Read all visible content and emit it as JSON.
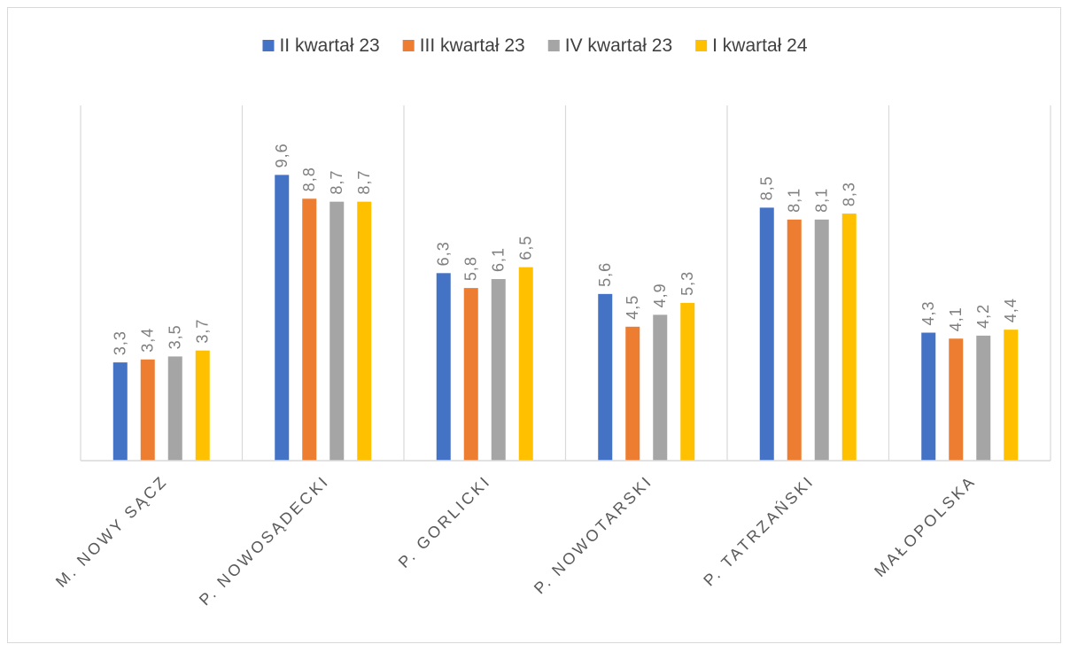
{
  "chart_data": {
    "type": "bar",
    "categories": [
      "M. NOWY SĄCZ",
      "P. NOWOSĄDECKI",
      "P. GORLICKI",
      "P. NOWOTARSKI",
      "P. TATRZAŃSKI",
      "MAŁOPOLSKA"
    ],
    "series": [
      {
        "name": "II kwartał 23",
        "color": "#4472c4",
        "values": [
          3.3,
          9.6,
          6.3,
          5.6,
          8.5,
          4.3
        ],
        "labels": [
          "3,3",
          "9,6",
          "6,3",
          "5,6",
          "8,5",
          "4,3"
        ]
      },
      {
        "name": "III kwartał 23",
        "color": "#ed7d31",
        "values": [
          3.4,
          8.8,
          5.8,
          4.5,
          8.1,
          4.1
        ],
        "labels": [
          "3,4",
          "8,8",
          "5,8",
          "4,5",
          "8,1",
          "4,1"
        ]
      },
      {
        "name": "IV kwartał 23",
        "color": "#a5a5a5",
        "values": [
          3.5,
          8.7,
          6.1,
          4.9,
          8.1,
          4.2
        ],
        "labels": [
          "3,5",
          "8,7",
          "6,1",
          "4,9",
          "8,1",
          "4,2"
        ]
      },
      {
        "name": "I kwartał 24",
        "color": "#ffc000",
        "values": [
          3.7,
          8.7,
          6.5,
          5.3,
          8.3,
          4.4
        ],
        "labels": [
          "3,7",
          "8,7",
          "6,5",
          "5,3",
          "8,3",
          "4,4"
        ]
      }
    ],
    "ylim": [
      0,
      12
    ],
    "legend_position": "top",
    "grid": "vertical category separators",
    "data_labels": true
  }
}
